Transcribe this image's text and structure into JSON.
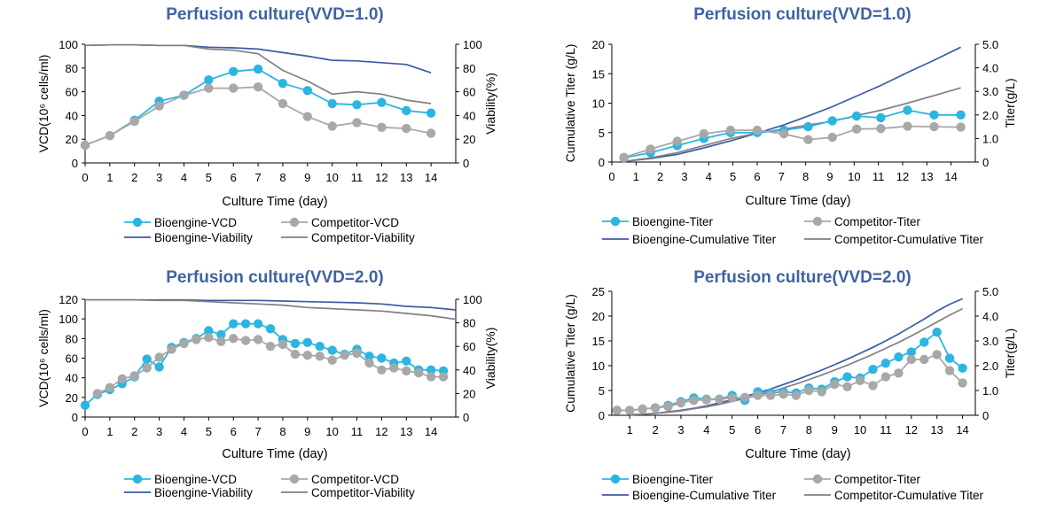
{
  "colors": {
    "bio_vcd": "#2cb5e0",
    "comp_vcd": "#a8a8a8",
    "bio_viab": "#3b5ba3",
    "comp_viab": "#808080",
    "title": "#3f63a4",
    "axis": "#000000"
  },
  "chart_data": [
    {
      "type": "line",
      "title": "Perfusion culture(VVD=1.0)",
      "xlabel": "Culture Time (day)",
      "ylabel": "VCD(10⁶ cells/ml)",
      "y2label": "Viability(%)",
      "xlim": [
        0,
        15
      ],
      "ylim": [
        0,
        100
      ],
      "y2lim": [
        0,
        100
      ],
      "xticks": [
        0,
        1,
        2,
        3,
        4,
        5,
        6,
        7,
        8,
        9,
        10,
        11,
        12,
        13,
        14
      ],
      "xtick_labels": [
        "0",
        "1",
        "2",
        "3",
        "4",
        "5",
        "6",
        "7",
        "8",
        "9",
        "10",
        "11",
        "12",
        "13",
        "14"
      ],
      "yticks": [
        0,
        20,
        40,
        60,
        80,
        100
      ],
      "ytick_labels": [
        "0",
        "20",
        "40",
        "60",
        "80",
        "100"
      ],
      "y2ticks": [
        0,
        20,
        40,
        60,
        80,
        100
      ],
      "y2tick_labels": [
        "0",
        "20",
        "40",
        "60",
        "80",
        "100"
      ],
      "legend": {
        "position": "bottom",
        "columns": 2
      },
      "series": [
        {
          "name": "Bioengine-VCD",
          "kind": "marker-line",
          "axis": "left",
          "color": "#2cb5e0",
          "x": [
            0,
            1,
            2,
            3,
            4,
            5,
            6,
            7,
            8,
            9,
            10,
            11,
            12,
            13,
            14
          ],
          "y": [
            15,
            23,
            36,
            52,
            57,
            70,
            77,
            79,
            67,
            61,
            50,
            49,
            51,
            44,
            42
          ]
        },
        {
          "name": "Competitor-VCD",
          "kind": "marker-line",
          "axis": "left",
          "color": "#a8a8a8",
          "x": [
            0,
            1,
            2,
            3,
            4,
            5,
            6,
            7,
            8,
            9,
            10,
            11,
            12,
            13,
            14
          ],
          "y": [
            15,
            23,
            35,
            48,
            57,
            63,
            63,
            64,
            50,
            39,
            31,
            34,
            30,
            29,
            25
          ]
        },
        {
          "name": "Bioengine-Viability",
          "kind": "line",
          "axis": "right",
          "color": "#3b5ba3",
          "x": [
            0,
            1,
            2,
            3,
            4,
            5,
            6,
            7,
            8,
            9,
            10,
            11,
            12,
            13,
            14
          ],
          "y": [
            99,
            99.5,
            99.5,
            99,
            99,
            97.5,
            97,
            96,
            93,
            90,
            86.5,
            86,
            84.5,
            83,
            76
          ]
        },
        {
          "name": "Competitor-Viability",
          "kind": "line",
          "axis": "right",
          "color": "#808080",
          "x": [
            0,
            1,
            2,
            3,
            4,
            5,
            6,
            7,
            8,
            9,
            10,
            11,
            12,
            13,
            14
          ],
          "y": [
            99,
            99.5,
            99.5,
            99,
            99,
            96,
            95,
            92,
            78,
            69,
            58,
            60,
            58,
            53,
            50
          ]
        }
      ]
    },
    {
      "type": "line",
      "title": "Perfusion culture(VVD=1.0)",
      "xlabel": "Culture Time (day)",
      "ylabel": "Cumulative Titer (g/L)",
      "y2label": "Titer(g/L)",
      "xlim": [
        0,
        15
      ],
      "ylim": [
        0,
        20
      ],
      "y2lim": [
        0,
        5
      ],
      "xticks": [
        0,
        1,
        2,
        3,
        4,
        5,
        6,
        7,
        8,
        9,
        10,
        11,
        12,
        13,
        14
      ],
      "xtick_labels": [
        "0",
        "1",
        "2",
        "3",
        "4",
        "5",
        "6",
        "7",
        "8",
        "9",
        "10",
        "11",
        "12",
        "13",
        "14"
      ],
      "yticks": [
        0,
        5,
        10,
        15,
        20
      ],
      "ytick_labels": [
        "0",
        "5",
        "10",
        "15",
        "20"
      ],
      "y2ticks": [
        0,
        1,
        2,
        3,
        4,
        5
      ],
      "y2tick_labels": [
        "0",
        "1.0",
        "2.0",
        "3.0",
        "4.0",
        "5.0"
      ],
      "legend": {
        "position": "bottom",
        "columns": 2
      },
      "series": [
        {
          "name": "Bioengine-Titer",
          "kind": "marker-line",
          "axis": "right",
          "color": "#2cb5e0",
          "x": [
            0.5,
            1.6,
            2.7,
            3.8,
            4.9,
            6,
            7.1,
            8.1,
            9.1,
            10.1,
            11.1,
            12.2,
            13.3,
            14.4
          ],
          "y": [
            0.18,
            0.4,
            0.7,
            1.0,
            1.25,
            1.25,
            1.35,
            1.5,
            1.75,
            1.95,
            1.88,
            2.2,
            2.0,
            2.0
          ]
        },
        {
          "name": "Competitor-Titer",
          "kind": "marker-line",
          "axis": "right",
          "color": "#a8a8a8",
          "x": [
            0.5,
            1.6,
            2.7,
            3.8,
            4.9,
            6,
            7.1,
            8.1,
            9.1,
            10.1,
            11.1,
            12.2,
            13.3,
            14.4
          ],
          "y": [
            0.2,
            0.55,
            0.88,
            1.2,
            1.35,
            1.35,
            1.2,
            0.95,
            1.05,
            1.4,
            1.42,
            1.52,
            1.5,
            1.48
          ]
        },
        {
          "name": "Bioengine-Cumulative Titer",
          "kind": "line",
          "axis": "left",
          "color": "#3b5ba3",
          "x": [
            0.5,
            1.6,
            2.7,
            3.8,
            4.9,
            6,
            7.1,
            8.1,
            9.1,
            10.1,
            11.1,
            12.2,
            13.3,
            14.4
          ],
          "y": [
            0.1,
            0.6,
            1.3,
            2.4,
            3.6,
            4.9,
            6.3,
            7.8,
            9.4,
            11.2,
            13.0,
            15.2,
            17.3,
            19.5
          ]
        },
        {
          "name": "Competitor-Cumulative Titer",
          "kind": "line",
          "axis": "left",
          "color": "#808080",
          "x": [
            0.5,
            1.6,
            2.7,
            3.8,
            4.9,
            6,
            7.1,
            8.1,
            9.1,
            10.1,
            11.1,
            12.2,
            13.3,
            14.4
          ],
          "y": [
            0.1,
            0.7,
            1.6,
            2.8,
            4.0,
            4.9,
            5.6,
            6.3,
            6.9,
            7.9,
            8.8,
            10.0,
            11.3,
            12.6
          ]
        }
      ]
    },
    {
      "type": "line",
      "title": "Perfusion culture(VVD=2.0)",
      "xlabel": "Culture Time (day)",
      "ylabel": "VCD(10⁶ cells/ml)",
      "y2label": "Viability(%)",
      "xlim": [
        0,
        15
      ],
      "ylim": [
        0,
        120
      ],
      "y2lim": [
        0,
        100
      ],
      "xticks": [
        0,
        1,
        2,
        3,
        4,
        5,
        6,
        7,
        8,
        9,
        10,
        11,
        12,
        13,
        14
      ],
      "xtick_labels": [
        "0",
        "1",
        "2",
        "3",
        "4",
        "5",
        "6",
        "7",
        "8",
        "9",
        "10",
        "11",
        "12",
        "13",
        "14"
      ],
      "yticks": [
        0,
        20,
        40,
        60,
        80,
        100,
        120
      ],
      "ytick_labels": [
        "0",
        "20",
        "40",
        "60",
        "80",
        "100",
        "120"
      ],
      "y2ticks": [
        0,
        20,
        40,
        60,
        80,
        100
      ],
      "y2tick_labels": [
        "0",
        "20",
        "40",
        "60",
        "80",
        "100"
      ],
      "legend": {
        "position": "bottom",
        "columns": 2
      },
      "series": [
        {
          "name": "Bioengine-VCD",
          "kind": "marker-line",
          "axis": "left",
          "color": "#2cb5e0",
          "x": [
            0,
            0.5,
            1,
            1.5,
            2,
            2.5,
            3,
            3.5,
            4,
            4.5,
            5,
            5.5,
            6,
            6.5,
            7,
            7.5,
            8,
            8.5,
            9,
            9.5,
            10,
            10.5,
            11,
            11.5,
            12,
            12.5,
            13,
            13.5,
            14,
            14.5
          ],
          "y": [
            12,
            23,
            28,
            34,
            41,
            59,
            51,
            71,
            76,
            80,
            88,
            84,
            95,
            95,
            95,
            90,
            79,
            75,
            76,
            72,
            68,
            64,
            69,
            62,
            60,
            55,
            57,
            48,
            48,
            47
          ]
        },
        {
          "name": "Competitor-VCD",
          "kind": "marker-line",
          "axis": "left",
          "color": "#a8a8a8",
          "x": [
            0.5,
            1,
            1.5,
            2,
            2.5,
            3,
            3.5,
            4,
            4.5,
            5,
            5.5,
            6,
            6.5,
            7,
            7.5,
            8,
            8.5,
            9,
            9.5,
            10,
            10.5,
            11,
            11.5,
            12,
            12.5,
            13,
            13.5,
            14,
            14.5
          ],
          "y": [
            24,
            30,
            39,
            42,
            50,
            61,
            69,
            75,
            79,
            81,
            77,
            80,
            78,
            79,
            72,
            74,
            64,
            63,
            62,
            58,
            63,
            65,
            55,
            48,
            50,
            47,
            45,
            41,
            41
          ]
        },
        {
          "name": "Bioengine-Viability",
          "kind": "line",
          "axis": "right",
          "color": "#3b5ba3",
          "x": [
            0,
            1,
            2,
            3,
            4,
            5,
            6,
            7,
            8,
            9,
            10,
            11,
            12,
            13,
            14,
            15
          ],
          "y": [
            99.5,
            99.5,
            99.5,
            99.5,
            99.5,
            99,
            99,
            99,
            98.5,
            98,
            97.5,
            97,
            96,
            94,
            93,
            91
          ]
        },
        {
          "name": "Competitor-Viability",
          "kind": "line",
          "axis": "right",
          "color": "#808080",
          "x": [
            0,
            1,
            2,
            3,
            4,
            5,
            6,
            7,
            8,
            9,
            10,
            11,
            12,
            13,
            14,
            15
          ],
          "y": [
            99.5,
            99.5,
            99.5,
            99,
            99,
            98,
            97,
            96,
            95,
            93,
            92,
            91,
            90,
            88,
            86,
            83
          ]
        }
      ]
    },
    {
      "type": "line",
      "title": "Perfusion culture(VVD=2.0)",
      "xlabel": "Culture Time (day)",
      "ylabel": "Cumulative Titer (g/L)",
      "y2label": "Titer(g/L)",
      "xlim": [
        0.3,
        14.5
      ],
      "ylim": [
        0,
        25
      ],
      "y2lim": [
        0,
        5
      ],
      "xticks": [
        1,
        2,
        3,
        4,
        5,
        6,
        7,
        8,
        9,
        10,
        11,
        12,
        13,
        14
      ],
      "xtick_labels": [
        "1",
        "2",
        "3",
        "4",
        "5",
        "6",
        "7",
        "8",
        "9",
        "10",
        "11",
        "12",
        "13",
        "14"
      ],
      "yticks": [
        0,
        5,
        10,
        15,
        20,
        25
      ],
      "ytick_labels": [
        "0",
        "5",
        "10",
        "15",
        "20",
        "25"
      ],
      "y2ticks": [
        0,
        1,
        2,
        3,
        4,
        5
      ],
      "y2tick_labels": [
        "0",
        "1.0",
        "2.0",
        "3.0",
        "4.0",
        "5.0"
      ],
      "legend": {
        "position": "bottom",
        "columns": 2
      },
      "series": [
        {
          "name": "Bioengine-Titer",
          "kind": "marker-line",
          "axis": "right",
          "color": "#2cb5e0",
          "x": [
            0.5,
            1,
            1.5,
            2,
            2.5,
            3,
            3.5,
            4,
            4.5,
            5,
            5.5,
            6,
            6.5,
            7,
            7.5,
            8,
            8.5,
            9,
            9.5,
            10,
            10.5,
            11,
            11.5,
            12,
            12.5,
            13,
            13.5,
            14
          ],
          "y": [
            0.2,
            0.2,
            0.25,
            0.3,
            0.4,
            0.55,
            0.7,
            0.65,
            0.65,
            0.8,
            0.6,
            0.95,
            0.9,
            0.95,
            0.9,
            1.1,
            1.05,
            1.35,
            1.55,
            1.5,
            1.85,
            2.1,
            2.35,
            2.55,
            2.95,
            3.35,
            2.3,
            1.9
          ]
        },
        {
          "name": "Competitor-Titer",
          "kind": "marker-line",
          "axis": "right",
          "color": "#a8a8a8",
          "x": [
            0.5,
            1,
            1.5,
            2,
            2.5,
            3,
            3.5,
            4,
            4.5,
            5,
            5.5,
            6,
            6.5,
            7,
            7.5,
            8,
            8.5,
            9,
            9.5,
            10,
            10.5,
            11,
            11.5,
            12,
            12.5,
            13,
            13.5,
            14
          ],
          "y": [
            0.2,
            0.2,
            0.25,
            0.3,
            0.35,
            0.5,
            0.6,
            0.62,
            0.65,
            0.7,
            0.72,
            0.8,
            0.8,
            0.85,
            0.8,
            1.0,
            0.95,
            1.25,
            1.15,
            1.4,
            1.2,
            1.55,
            1.7,
            2.25,
            2.25,
            2.45,
            1.8,
            1.3
          ]
        },
        {
          "name": "Bioengine-Cumulative Titer",
          "kind": "line",
          "axis": "left",
          "color": "#3b5ba3",
          "x": [
            1,
            1.5,
            2,
            2.5,
            3,
            3.5,
            4,
            4.5,
            5,
            5.5,
            6,
            6.5,
            7,
            7.5,
            8,
            8.5,
            9,
            9.5,
            10,
            10.5,
            11,
            11.5,
            12,
            12.5,
            13,
            13.5,
            14
          ],
          "y": [
            0.1,
            0.2,
            0.4,
            0.7,
            1.0,
            1.4,
            1.9,
            2.5,
            3.1,
            3.8,
            4.5,
            5.3,
            6.2,
            7.1,
            8.1,
            9.1,
            10.2,
            11.3,
            12.5,
            13.7,
            15.0,
            16.4,
            17.9,
            19.4,
            21.0,
            22.4,
            23.5
          ]
        },
        {
          "name": "Competitor-Cumulative Titer",
          "kind": "line",
          "axis": "left",
          "color": "#808080",
          "x": [
            1,
            1.5,
            2,
            2.5,
            3,
            3.5,
            4,
            4.5,
            5,
            5.5,
            6,
            6.5,
            7,
            7.5,
            8,
            8.5,
            9,
            9.5,
            10,
            10.5,
            11,
            11.5,
            12,
            12.5,
            13,
            13.5,
            14
          ],
          "y": [
            0.1,
            0.2,
            0.4,
            0.6,
            0.9,
            1.3,
            1.7,
            2.2,
            2.8,
            3.4,
            4.0,
            4.7,
            5.5,
            6.3,
            7.2,
            8.1,
            9.1,
            10.1,
            11.2,
            12.3,
            13.5,
            14.7,
            16.0,
            17.4,
            18.8,
            20.2,
            21.5
          ]
        }
      ]
    }
  ]
}
